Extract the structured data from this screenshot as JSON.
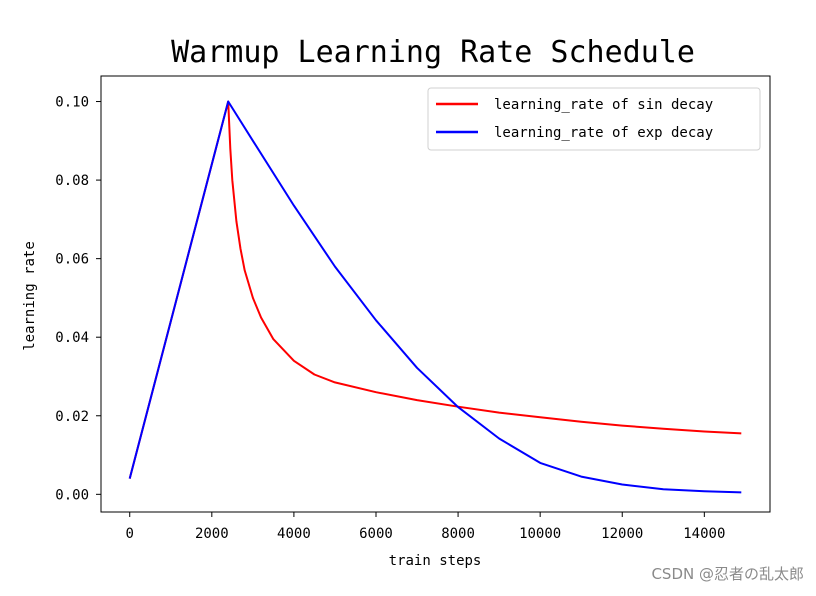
{
  "chart_data": {
    "type": "line",
    "title": "Warmup Learning Rate Schedule",
    "xlabel": "train steps",
    "ylabel": "learning rate",
    "xlim": [
      -700,
      15600
    ],
    "ylim": [
      -0.0045,
      0.1065
    ],
    "xticks": [
      0,
      2000,
      4000,
      6000,
      8000,
      10000,
      12000,
      14000
    ],
    "xtick_labels": [
      "0",
      "2000",
      "4000",
      "6000",
      "8000",
      "10000",
      "12000",
      "14000"
    ],
    "yticks": [
      0.0,
      0.02,
      0.04,
      0.06,
      0.08,
      0.1
    ],
    "ytick_labels": [
      "0.00",
      "0.02",
      "0.04",
      "0.06",
      "0.08",
      "0.10"
    ],
    "grid": false,
    "legend_position": "upper right",
    "series": [
      {
        "name": "learning_rate of sin decay",
        "color": "#ff0000",
        "x": [
          0,
          2400,
          2450,
          2500,
          2600,
          2700,
          2800,
          3000,
          3200,
          3500,
          4000,
          4500,
          5000,
          6000,
          7000,
          8000,
          9000,
          10000,
          11000,
          12000,
          13000,
          14000,
          14900
        ],
        "y": [
          0.004,
          0.1,
          0.088,
          0.08,
          0.0695,
          0.0625,
          0.057,
          0.05,
          0.045,
          0.0395,
          0.034,
          0.0305,
          0.0285,
          0.026,
          0.024,
          0.0223,
          0.0208,
          0.0196,
          0.0185,
          0.0175,
          0.0167,
          0.016,
          0.0155
        ]
      },
      {
        "name": "learning_rate of exp decay",
        "color": "#0000ff",
        "x": [
          0,
          2400,
          3000,
          4000,
          5000,
          6000,
          7000,
          8000,
          9000,
          10000,
          11000,
          12000,
          13000,
          14000,
          14900
        ],
        "y": [
          0.004,
          0.1,
          0.09,
          0.0735,
          0.058,
          0.0443,
          0.0322,
          0.0222,
          0.0142,
          0.008,
          0.0045,
          0.0025,
          0.0013,
          0.0008,
          0.0005
        ]
      }
    ]
  },
  "watermark": "CSDN @忍者の乱太郎"
}
